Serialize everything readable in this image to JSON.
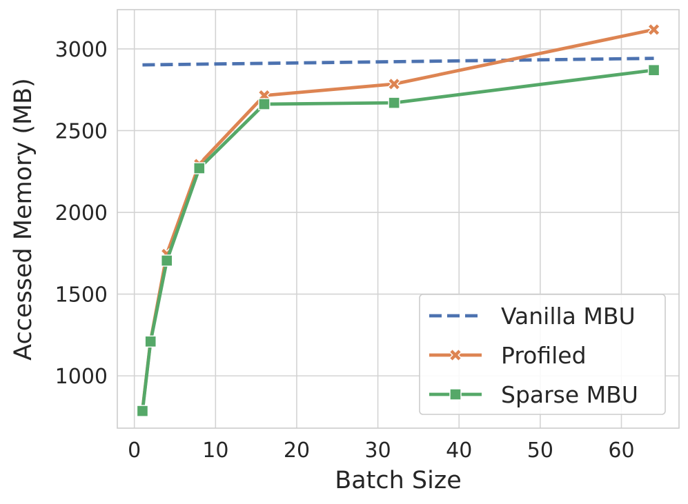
{
  "chart_data": {
    "type": "line",
    "title": "",
    "xlabel": "Batch Size",
    "ylabel": "Accessed Memory (MB)",
    "xlim": [
      -2.1,
      67.1
    ],
    "ylim": [
      680,
      3240
    ],
    "xticks": [
      0,
      10,
      20,
      30,
      40,
      50,
      60
    ],
    "yticks": [
      1000,
      1500,
      2000,
      2500,
      3000
    ],
    "grid": true,
    "legend_position": "lower-right",
    "series": [
      {
        "name": "Vanilla MBU",
        "style": "dashed",
        "marker": "none",
        "color": "#4c72b0",
        "x": [
          1,
          64
        ],
        "y": [
          2902,
          2942
        ]
      },
      {
        "name": "Profiled",
        "style": "solid",
        "marker": "x",
        "color": "#dd8452",
        "x": [
          1,
          2,
          4,
          8,
          16,
          32,
          64
        ],
        "y": [
          790,
          1215,
          1745,
          2295,
          2715,
          2785,
          3118
        ]
      },
      {
        "name": "Sparse MBU",
        "style": "solid",
        "marker": "square",
        "color": "#55a868",
        "x": [
          1,
          2,
          4,
          8,
          16,
          32,
          64
        ],
        "y": [
          785,
          1210,
          1705,
          2270,
          2662,
          2670,
          2870
        ]
      }
    ]
  }
}
